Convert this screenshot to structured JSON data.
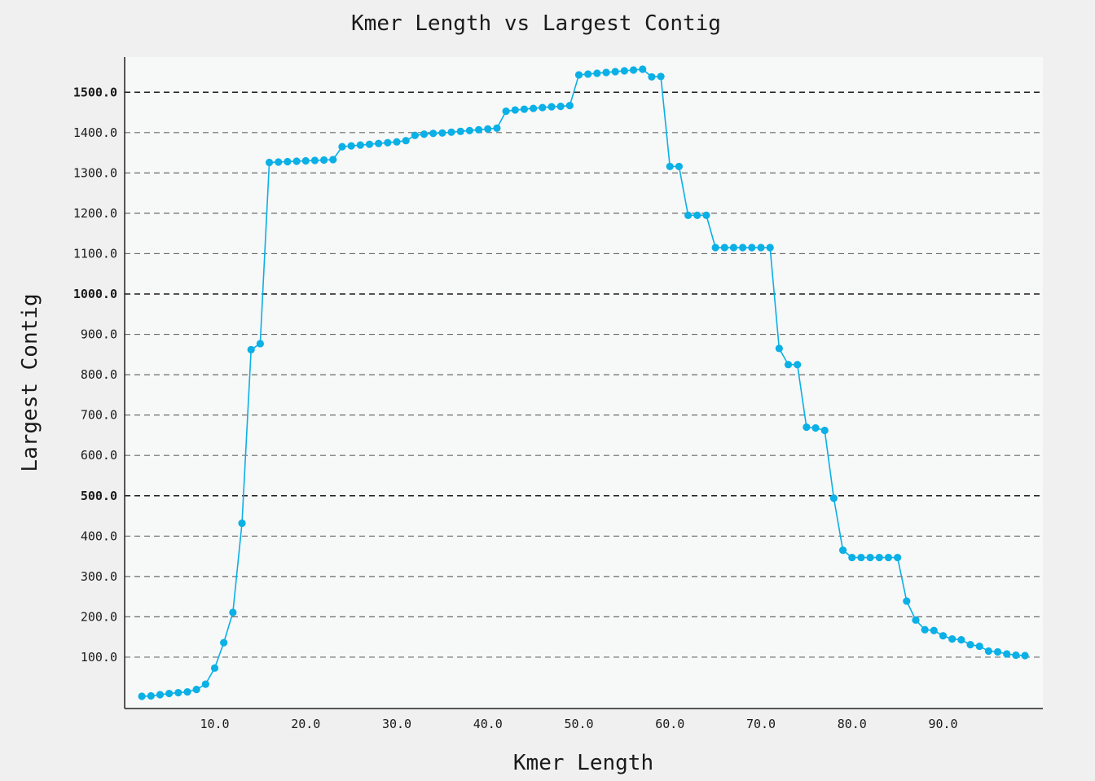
{
  "chart_data": {
    "type": "line",
    "title": "Kmer Length vs Largest Contig",
    "xlabel": "Kmer Length",
    "ylabel": "Largest Contig",
    "xlim": [
      0,
      100
    ],
    "ylim": [
      -30,
      1590
    ],
    "xticks": [
      10,
      20,
      30,
      40,
      50,
      60,
      70,
      80,
      90
    ],
    "xtick_labels": [
      "10.0",
      "20.0",
      "30.0",
      "40.0",
      "50.0",
      "60.0",
      "70.0",
      "80.0",
      "90.0"
    ],
    "yticks": [
      100,
      200,
      300,
      400,
      500,
      600,
      700,
      800,
      900,
      1000,
      1100,
      1200,
      1300,
      1400,
      1500
    ],
    "ytick_labels": [
      "100.0",
      "200.0",
      "300.0",
      "400.0",
      "500.0",
      "600.0",
      "700.0",
      "800.0",
      "900.0",
      "1000.0",
      "1100.0",
      "1200.0",
      "1300.0",
      "1400.0",
      "1500.0"
    ],
    "grid": "horizontal dashed",
    "series": [
      {
        "color": "#0ab0e6",
        "x": [
          2,
          3,
          4,
          5,
          6,
          7,
          8,
          9,
          10,
          11,
          12,
          13,
          14,
          15,
          16,
          17,
          18,
          19,
          20,
          21,
          22,
          23,
          24,
          25,
          26,
          27,
          28,
          29,
          30,
          31,
          32,
          33,
          34,
          35,
          36,
          37,
          38,
          39,
          40,
          41,
          42,
          43,
          44,
          45,
          46,
          47,
          48,
          49,
          50,
          51,
          52,
          53,
          54,
          55,
          56,
          57,
          58,
          59,
          60,
          61,
          62,
          63,
          64,
          65,
          66,
          67,
          68,
          69,
          70,
          71,
          72,
          73,
          74,
          75,
          76,
          77,
          78,
          79,
          80,
          81,
          82,
          83,
          84,
          85,
          86,
          87,
          88,
          89,
          90,
          91,
          92,
          93,
          94,
          95,
          96,
          97,
          98,
          99
        ],
        "y": [
          3,
          4,
          7,
          10,
          12,
          14,
          20,
          33,
          73,
          136,
          211,
          432,
          862,
          877,
          1326,
          1327,
          1328,
          1329,
          1330,
          1331,
          1332,
          1333,
          1365,
          1367,
          1369,
          1371,
          1373,
          1375,
          1377,
          1380,
          1393,
          1396,
          1398,
          1399,
          1401,
          1403,
          1405,
          1407,
          1409,
          1411,
          1453,
          1456,
          1458,
          1460,
          1462,
          1464,
          1465,
          1467,
          1543,
          1545,
          1547,
          1549,
          1551,
          1553,
          1555,
          1557,
          1538,
          1539,
          1316,
          1316,
          1195,
          1195,
          1195,
          1115,
          1115,
          1115,
          1115,
          1115,
          1115,
          1115,
          865,
          825,
          825,
          670,
          668,
          662,
          494,
          365,
          347,
          347,
          347,
          347,
          347,
          347,
          239,
          192,
          168,
          166,
          153,
          145,
          143,
          131,
          127,
          115,
          113,
          108,
          105,
          104
        ]
      }
    ]
  }
}
